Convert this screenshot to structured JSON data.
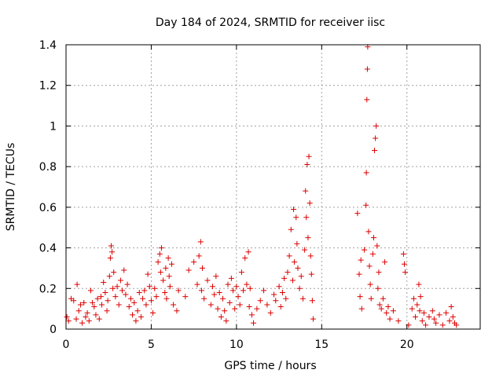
{
  "chart_data": {
    "type": "scatter",
    "title": "Day 184 of 2024, SRMTID for receiver iisc",
    "xlabel": "GPS time / hours",
    "ylabel": "SRMTID / TECUs",
    "xlim": [
      0,
      24.3
    ],
    "ylim": [
      0,
      1.4
    ],
    "xticks": [
      0,
      5,
      10,
      15,
      20
    ],
    "yticks": [
      0,
      0.2,
      0.4,
      0.6,
      0.8,
      1,
      1.2,
      1.4
    ],
    "xtick_labels": [
      "0",
      "5",
      "10",
      "15",
      "20"
    ],
    "ytick_labels": [
      "0",
      "0.2",
      "0.4",
      "0.6",
      "0.8",
      "1",
      "1.2",
      "1.4"
    ],
    "grid": true,
    "marker": "+",
    "color": "#dd0000",
    "series": [
      {
        "name": "SRMTID",
        "points": [
          [
            0.05,
            0.06
          ],
          [
            0.15,
            0.04
          ],
          [
            0.3,
            0.15
          ],
          [
            0.45,
            0.14
          ],
          [
            0.6,
            0.05
          ],
          [
            0.65,
            0.22
          ],
          [
            0.75,
            0.09
          ],
          [
            0.85,
            0.12
          ],
          [
            0.95,
            0.03
          ],
          [
            1.05,
            0.13
          ],
          [
            1.15,
            0.06
          ],
          [
            1.25,
            0.08
          ],
          [
            1.35,
            0.04
          ],
          [
            1.45,
            0.19
          ],
          [
            1.55,
            0.13
          ],
          [
            1.65,
            0.11
          ],
          [
            1.75,
            0.07
          ],
          [
            1.85,
            0.15
          ],
          [
            1.95,
            0.05
          ],
          [
            2.05,
            0.16
          ],
          [
            2.1,
            0.12
          ],
          [
            2.2,
            0.23
          ],
          [
            2.3,
            0.18
          ],
          [
            2.4,
            0.09
          ],
          [
            2.45,
            0.14
          ],
          [
            2.55,
            0.26
          ],
          [
            2.6,
            0.35
          ],
          [
            2.65,
            0.41
          ],
          [
            2.7,
            0.38
          ],
          [
            2.75,
            0.2
          ],
          [
            2.8,
            0.28
          ],
          [
            2.9,
            0.16
          ],
          [
            3.0,
            0.21
          ],
          [
            3.1,
            0.12
          ],
          [
            3.2,
            0.24
          ],
          [
            3.3,
            0.19
          ],
          [
            3.4,
            0.29
          ],
          [
            3.5,
            0.17
          ],
          [
            3.6,
            0.22
          ],
          [
            3.7,
            0.11
          ],
          [
            3.8,
            0.15
          ],
          [
            3.9,
            0.07
          ],
          [
            4.0,
            0.13
          ],
          [
            4.1,
            0.04
          ],
          [
            4.2,
            0.09
          ],
          [
            4.3,
            0.18
          ],
          [
            4.4,
            0.06
          ],
          [
            4.5,
            0.15
          ],
          [
            4.6,
            0.19
          ],
          [
            4.7,
            0.12
          ],
          [
            4.8,
            0.27
          ],
          [
            4.9,
            0.21
          ],
          [
            5.0,
            0.14
          ],
          [
            5.1,
            0.08
          ],
          [
            5.2,
            0.2
          ],
          [
            5.3,
            0.16
          ],
          [
            5.4,
            0.33
          ],
          [
            5.5,
            0.37
          ],
          [
            5.55,
            0.28
          ],
          [
            5.6,
            0.4
          ],
          [
            5.7,
            0.24
          ],
          [
            5.8,
            0.18
          ],
          [
            5.85,
            0.3
          ],
          [
            5.9,
            0.15
          ],
          [
            6.0,
            0.35
          ],
          [
            6.05,
            0.26
          ],
          [
            6.1,
            0.21
          ],
          [
            6.2,
            0.32
          ],
          [
            6.3,
            0.12
          ],
          [
            6.5,
            0.09
          ],
          [
            6.6,
            0.19
          ],
          [
            7.0,
            0.16
          ],
          [
            7.2,
            0.29
          ],
          [
            7.5,
            0.33
          ],
          [
            7.7,
            0.22
          ],
          [
            7.8,
            0.36
          ],
          [
            7.9,
            0.43
          ],
          [
            7.95,
            0.19
          ],
          [
            8.0,
            0.3
          ],
          [
            8.1,
            0.15
          ],
          [
            8.3,
            0.24
          ],
          [
            8.5,
            0.12
          ],
          [
            8.6,
            0.21
          ],
          [
            8.7,
            0.17
          ],
          [
            8.8,
            0.26
          ],
          [
            8.9,
            0.1
          ],
          [
            9.0,
            0.18
          ],
          [
            9.1,
            0.06
          ],
          [
            9.2,
            0.15
          ],
          [
            9.3,
            0.09
          ],
          [
            9.4,
            0.04
          ],
          [
            9.5,
            0.22
          ],
          [
            9.6,
            0.13
          ],
          [
            9.7,
            0.25
          ],
          [
            9.8,
            0.19
          ],
          [
            9.9,
            0.1
          ],
          [
            10.0,
            0.21
          ],
          [
            10.1,
            0.16
          ],
          [
            10.2,
            0.12
          ],
          [
            10.3,
            0.28
          ],
          [
            10.4,
            0.19
          ],
          [
            10.5,
            0.35
          ],
          [
            10.6,
            0.22
          ],
          [
            10.7,
            0.38
          ],
          [
            10.75,
            0.11
          ],
          [
            10.8,
            0.2
          ],
          [
            10.9,
            0.07
          ],
          [
            11.0,
            0.03
          ],
          [
            11.2,
            0.1
          ],
          [
            11.4,
            0.14
          ],
          [
            11.6,
            0.19
          ],
          [
            11.8,
            0.12
          ],
          [
            12.0,
            0.08
          ],
          [
            12.2,
            0.17
          ],
          [
            12.3,
            0.14
          ],
          [
            12.5,
            0.21
          ],
          [
            12.6,
            0.11
          ],
          [
            12.7,
            0.18
          ],
          [
            12.8,
            0.25
          ],
          [
            12.9,
            0.15
          ],
          [
            13.0,
            0.28
          ],
          [
            13.1,
            0.36
          ],
          [
            13.2,
            0.49
          ],
          [
            13.3,
            0.24
          ],
          [
            13.35,
            0.59
          ],
          [
            13.4,
            0.33
          ],
          [
            13.5,
            0.55
          ],
          [
            13.55,
            0.42
          ],
          [
            13.6,
            0.3
          ],
          [
            13.7,
            0.2
          ],
          [
            13.8,
            0.26
          ],
          [
            13.9,
            0.15
          ],
          [
            14.0,
            0.39
          ],
          [
            14.05,
            0.68
          ],
          [
            14.1,
            0.55
          ],
          [
            14.15,
            0.81
          ],
          [
            14.2,
            0.45
          ],
          [
            14.25,
            0.85
          ],
          [
            14.3,
            0.62
          ],
          [
            14.35,
            0.36
          ],
          [
            14.4,
            0.27
          ],
          [
            14.45,
            0.14
          ],
          [
            14.5,
            0.05
          ],
          [
            17.1,
            0.57
          ],
          [
            17.2,
            0.27
          ],
          [
            17.25,
            0.16
          ],
          [
            17.3,
            0.34
          ],
          [
            17.35,
            0.1
          ],
          [
            17.5,
            0.39
          ],
          [
            17.6,
            0.61
          ],
          [
            17.62,
            0.77
          ],
          [
            17.65,
            1.13
          ],
          [
            17.68,
            1.28
          ],
          [
            17.7,
            1.39
          ],
          [
            17.75,
            0.48
          ],
          [
            17.8,
            0.31
          ],
          [
            17.85,
            0.22
          ],
          [
            17.9,
            0.15
          ],
          [
            18.0,
            0.37
          ],
          [
            18.05,
            0.45
          ],
          [
            18.1,
            0.88
          ],
          [
            18.15,
            0.94
          ],
          [
            18.2,
            1.0
          ],
          [
            18.25,
            0.41
          ],
          [
            18.3,
            0.2
          ],
          [
            18.35,
            0.28
          ],
          [
            18.4,
            0.12
          ],
          [
            18.5,
            0.1
          ],
          [
            18.6,
            0.15
          ],
          [
            18.7,
            0.33
          ],
          [
            18.8,
            0.08
          ],
          [
            18.9,
            0.11
          ],
          [
            19.0,
            0.05
          ],
          [
            19.2,
            0.09
          ],
          [
            19.5,
            0.04
          ],
          [
            19.8,
            0.37
          ],
          [
            19.85,
            0.32
          ],
          [
            19.9,
            0.28
          ],
          [
            20.1,
            0.02
          ],
          [
            20.3,
            0.1
          ],
          [
            20.4,
            0.15
          ],
          [
            20.5,
            0.06
          ],
          [
            20.6,
            0.12
          ],
          [
            20.7,
            0.22
          ],
          [
            20.75,
            0.09
          ],
          [
            20.8,
            0.16
          ],
          [
            20.9,
            0.04
          ],
          [
            21.0,
            0.08
          ],
          [
            21.1,
            0.02
          ],
          [
            21.3,
            0.06
          ],
          [
            21.5,
            0.09
          ],
          [
            21.6,
            0.05
          ],
          [
            21.7,
            0.03
          ],
          [
            21.9,
            0.07
          ],
          [
            22.1,
            0.02
          ],
          [
            22.3,
            0.08
          ],
          [
            22.5,
            0.04
          ],
          [
            22.6,
            0.11
          ],
          [
            22.7,
            0.06
          ],
          [
            22.8,
            0.03
          ],
          [
            22.9,
            0.02
          ]
        ]
      }
    ]
  }
}
